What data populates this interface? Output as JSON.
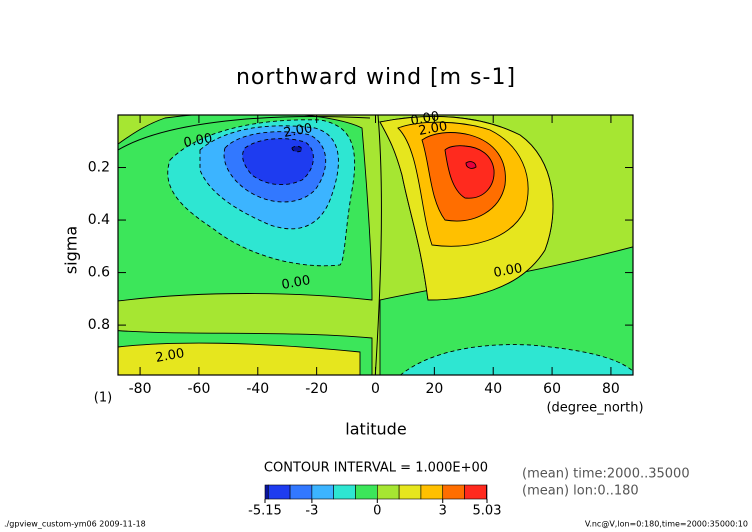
{
  "chart_data": {
    "type": "contour",
    "title": "northward wind [m s-1]",
    "x_label": "latitude",
    "x_unit": "(degree_north)",
    "y_label": "sigma",
    "y_unit": "(1)",
    "xlim": [
      -87.5,
      87.5
    ],
    "xticks": [
      -80,
      -60,
      -40,
      -20,
      0,
      20,
      40,
      60,
      80
    ],
    "ylim": [
      0.99,
      0.0
    ],
    "yticks": [
      0.2,
      0.4,
      0.6,
      0.8
    ],
    "levels": [
      -5.15,
      -5,
      -4,
      -3,
      -2,
      -1,
      0,
      1,
      2,
      3,
      4,
      5,
      5.03
    ],
    "colors": [
      "#0a14a0",
      "#1e3cf0",
      "#3278ff",
      "#3cb4ff",
      "#2ee6d2",
      "#3ce65a",
      "#a6e632",
      "#e6e61e",
      "#ffc000",
      "#ff6e00",
      "#ff2a1e",
      "#e6003c"
    ],
    "colorbar_ticks": [
      -5.15,
      -3,
      0,
      3,
      5.03
    ],
    "contour_labels": [
      {
        "value": 0,
        "label": "0.00"
      },
      {
        "value": 2,
        "label": "2.00"
      },
      {
        "value": 0,
        "label": "0.00"
      },
      {
        "value": 2,
        "label": "2.00"
      },
      {
        "value": 0,
        "label": "0.00"
      },
      {
        "value": 0,
        "label": "0.00"
      },
      {
        "value": 2,
        "label": "2.00"
      }
    ],
    "contour_interval": "CONTOUR INTERVAL = 1.000E+00",
    "notes": [
      "(mean) time:2000..35000",
      "(mean) lon:0..180"
    ],
    "footer_left": "./gpview_custom-ym06  2009-11-18",
    "footer_right": "V.nc@V,lon=0:180,time=2000:35000:10"
  }
}
